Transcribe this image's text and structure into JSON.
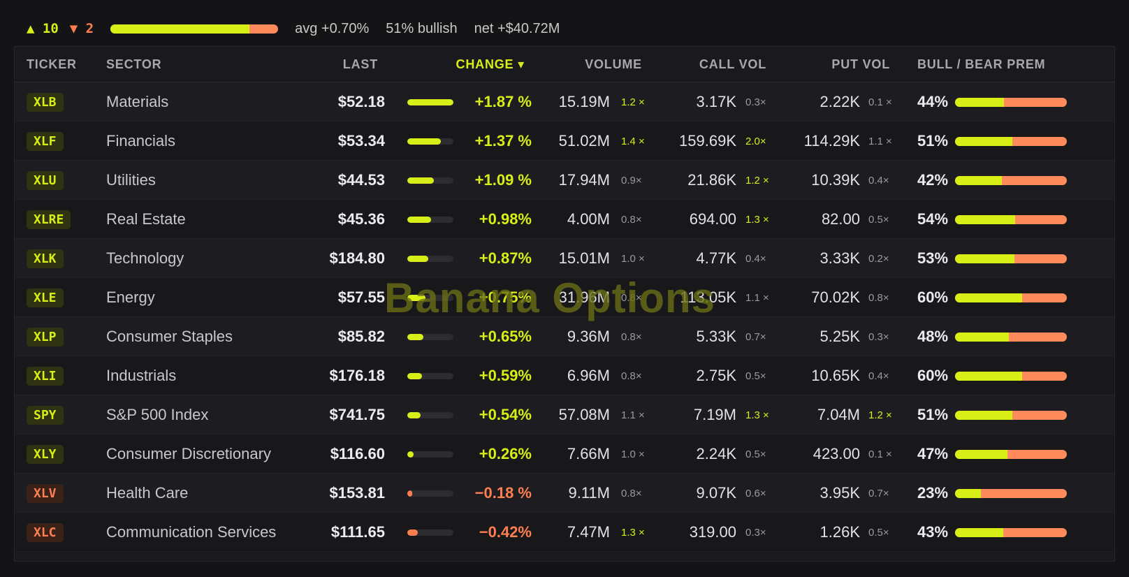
{
  "summary": {
    "advancers": "▲ 10",
    "advancers_fraction": 0.83,
    "decliners": "▼ 2",
    "avg": "avg +0.70%",
    "bullish": "51% bullish",
    "net": "net +$40.72M"
  },
  "columns": {
    "ticker": "TICKER",
    "sector": "SECTOR",
    "last": "LAST",
    "change": "CHANGE ▾",
    "volume": "VOLUME",
    "call_vol": "CALL VOL",
    "put_vol": "PUT VOL",
    "bull_bear": "BULL / BEAR PREM"
  },
  "colors": {
    "bull": "#d8ef17",
    "bear": "#ff7f50"
  },
  "watermark": "Banana Options",
  "rows": [
    {
      "ticker": "XLB",
      "sector": "Materials",
      "last": "$52.18",
      "change": "+1.87 %",
      "change_level": 1.0,
      "dir": "up",
      "volume": "15.19M",
      "vol_mult": "1.2 ×",
      "vol_hi": true,
      "call_vol": "3.17K",
      "call_mult": "0.3×",
      "call_hi": false,
      "put_vol": "2.22K",
      "put_mult": "0.1 ×",
      "put_hi": false,
      "bull_pct": "44%",
      "bull_frac": 0.44
    },
    {
      "ticker": "XLF",
      "sector": "Financials",
      "last": "$53.34",
      "change": "+1.37 %",
      "change_level": 0.73,
      "dir": "up",
      "volume": "51.02M",
      "vol_mult": "1.4 ×",
      "vol_hi": true,
      "call_vol": "159.69K",
      "call_mult": "2.0×",
      "call_hi": true,
      "put_vol": "114.29K",
      "put_mult": "1.1 ×",
      "put_hi": false,
      "bull_pct": "51%",
      "bull_frac": 0.51
    },
    {
      "ticker": "XLU",
      "sector": "Utilities",
      "last": "$44.53",
      "change": "+1.09 %",
      "change_level": 0.58,
      "dir": "up",
      "volume": "17.94M",
      "vol_mult": "0.9×",
      "vol_hi": false,
      "call_vol": "21.86K",
      "call_mult": "1.2 ×",
      "call_hi": true,
      "put_vol": "10.39K",
      "put_mult": "0.4×",
      "put_hi": false,
      "bull_pct": "42%",
      "bull_frac": 0.42
    },
    {
      "ticker": "XLRE",
      "sector": "Real Estate",
      "last": "$45.36",
      "change": "+0.98%",
      "change_level": 0.52,
      "dir": "up",
      "volume": "4.00M",
      "vol_mult": "0.8×",
      "vol_hi": false,
      "call_vol": "694.00",
      "call_mult": "1.3 ×",
      "call_hi": true,
      "put_vol": "82.00",
      "put_mult": "0.5×",
      "put_hi": false,
      "bull_pct": "54%",
      "bull_frac": 0.54
    },
    {
      "ticker": "XLK",
      "sector": "Technology",
      "last": "$184.80",
      "change": "+0.87%",
      "change_level": 0.46,
      "dir": "up",
      "volume": "15.01M",
      "vol_mult": "1.0 ×",
      "vol_hi": false,
      "call_vol": "4.77K",
      "call_mult": "0.4×",
      "call_hi": false,
      "put_vol": "3.33K",
      "put_mult": "0.2×",
      "put_hi": false,
      "bull_pct": "53%",
      "bull_frac": 0.53
    },
    {
      "ticker": "XLE",
      "sector": "Energy",
      "last": "$57.55",
      "change": "+0.75%",
      "change_level": 0.4,
      "dir": "up",
      "volume": "31.96M",
      "vol_mult": "0.8×",
      "vol_hi": false,
      "call_vol": "113.05K",
      "call_mult": "1.1 ×",
      "call_hi": false,
      "put_vol": "70.02K",
      "put_mult": "0.8×",
      "put_hi": false,
      "bull_pct": "60%",
      "bull_frac": 0.6
    },
    {
      "ticker": "XLP",
      "sector": "Consumer Staples",
      "last": "$85.82",
      "change": "+0.65%",
      "change_level": 0.35,
      "dir": "up",
      "volume": "9.36M",
      "vol_mult": "0.8×",
      "vol_hi": false,
      "call_vol": "5.33K",
      "call_mult": "0.7×",
      "call_hi": false,
      "put_vol": "5.25K",
      "put_mult": "0.3×",
      "put_hi": false,
      "bull_pct": "48%",
      "bull_frac": 0.48
    },
    {
      "ticker": "XLI",
      "sector": "Industrials",
      "last": "$176.18",
      "change": "+0.59%",
      "change_level": 0.32,
      "dir": "up",
      "volume": "6.96M",
      "vol_mult": "0.8×",
      "vol_hi": false,
      "call_vol": "2.75K",
      "call_mult": "0.5×",
      "call_hi": false,
      "put_vol": "10.65K",
      "put_mult": "0.4×",
      "put_hi": false,
      "bull_pct": "60%",
      "bull_frac": 0.6
    },
    {
      "ticker": "SPY",
      "sector": "S&P 500 Index",
      "last": "$741.75",
      "change": "+0.54%",
      "change_level": 0.29,
      "dir": "up",
      "volume": "57.08M",
      "vol_mult": "1.1 ×",
      "vol_hi": false,
      "call_vol": "7.19M",
      "call_mult": "1.3 ×",
      "call_hi": true,
      "put_vol": "7.04M",
      "put_mult": "1.2 ×",
      "put_hi": true,
      "bull_pct": "51%",
      "bull_frac": 0.51
    },
    {
      "ticker": "XLY",
      "sector": "Consumer Discretionary",
      "last": "$116.60",
      "change": "+0.26%",
      "change_level": 0.14,
      "dir": "up",
      "volume": "7.66M",
      "vol_mult": "1.0 ×",
      "vol_hi": false,
      "call_vol": "2.24K",
      "call_mult": "0.5×",
      "call_hi": false,
      "put_vol": "423.00",
      "put_mult": "0.1 ×",
      "put_hi": false,
      "bull_pct": "47%",
      "bull_frac": 0.47
    },
    {
      "ticker": "XLV",
      "sector": "Health Care",
      "last": "$153.81",
      "change": "−0.18 %",
      "change_level": 0.1,
      "dir": "down",
      "volume": "9.11M",
      "vol_mult": "0.8×",
      "vol_hi": false,
      "call_vol": "9.07K",
      "call_mult": "0.6×",
      "call_hi": false,
      "put_vol": "3.95K",
      "put_mult": "0.7×",
      "put_hi": false,
      "bull_pct": "23%",
      "bull_frac": 0.23
    },
    {
      "ticker": "XLC",
      "sector": "Communication Services",
      "last": "$111.65",
      "change": "−0.42%",
      "change_level": 0.22,
      "dir": "down",
      "volume": "7.47M",
      "vol_mult": "1.3 ×",
      "vol_hi": true,
      "call_vol": "319.00",
      "call_mult": "0.3×",
      "call_hi": false,
      "put_vol": "1.26K",
      "put_mult": "0.5×",
      "put_hi": false,
      "bull_pct": "43%",
      "bull_frac": 0.43
    }
  ]
}
